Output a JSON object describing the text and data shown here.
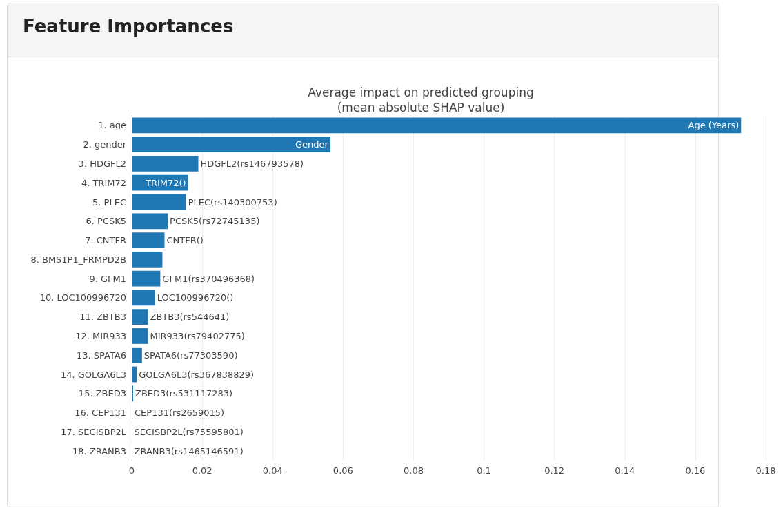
{
  "chart_data": {
    "type": "bar",
    "orientation": "horizontal",
    "title": "Feature Importances",
    "subtitle": "Average impact on predicted grouping\n(mean absolute SHAP value)",
    "categories": [
      "1. age",
      "2. gender",
      "3. HDGFL2",
      "4. TRIM72",
      "5. PLEC",
      "6. PCSK5",
      "7. CNTFR",
      "8. BMS1P1_FRMPD2B",
      "9. GFM1",
      "10. LOC100996720",
      "11. ZBTB3",
      "12. MIR933",
      "13. SPATA6",
      "14. GOLGA6L3",
      "15. ZBED3",
      "16. CEP131",
      "17. SECISBP2L",
      "18. ZRANB3"
    ],
    "values": [
      0.173,
      0.0564,
      0.0189,
      0.016,
      0.0154,
      0.0102,
      0.0093,
      0.0087,
      0.0081,
      0.0066,
      0.0046,
      0.0046,
      0.0029,
      0.0014,
      0.0004,
      0.0002,
      0.0001,
      0.0001
    ],
    "color": "#1f77b4",
    "xlim": [
      0,
      0.18
    ],
    "xticks": [
      0,
      0.02,
      0.04,
      0.06,
      0.08,
      0.1,
      0.12,
      0.14,
      0.16,
      0.18
    ],
    "grid": "x",
    "annotations": [
      {
        "text": "Age (Years)",
        "x": 0.173,
        "y": "1. age"
      },
      {
        "text": "Gender",
        "x": 0.0564,
        "y": "2. gender"
      },
      {
        "text": "HDGFL2(rs146793578)",
        "x": 0.0189,
        "y": "3. HDGFL2"
      },
      {
        "text": "TRIM72()",
        "x": 0.016,
        "y": "4. TRIM72"
      },
      {
        "text": "PLEC(rs140300753)",
        "x": 0.0154,
        "y": "5. PLEC"
      },
      {
        "text": "PCSK5(rs72745135)",
        "x": 0.0102,
        "y": "6. PCSK5"
      },
      {
        "text": "CNTFR()",
        "x": 0.0093,
        "y": "7. CNTFR"
      },
      {
        "text": "GFM1(rs370496368)",
        "x": 0.0081,
        "y": "9. GFM1"
      },
      {
        "text": "LOC100996720()",
        "x": 0.0066,
        "y": "10. LOC100996720"
      },
      {
        "text": "ZBTB3(rs544641)",
        "x": 0.0046,
        "y": "11. ZBTB3"
      },
      {
        "text": "MIR933(rs79402775)",
        "x": 0.0046,
        "y": "12. MIR933"
      },
      {
        "text": "SPATA6(rs77303590)",
        "x": 0.0029,
        "y": "13. SPATA6"
      },
      {
        "text": "GOLGA6L3(rs367838829)",
        "x": 0.0014,
        "y": "14. GOLGA6L3"
      },
      {
        "text": "ZBED3(rs531117283)",
        "x": 0.0004,
        "y": "15. ZBED3"
      },
      {
        "text": "CEP131(rs2659015)",
        "x": 0.0002,
        "y": "16. CEP131"
      },
      {
        "text": "SECISBP2L(rs75595801)",
        "x": 0.0001,
        "y": "17. SECISBP2L"
      },
      {
        "text": "ZRANB3(rs1465146591)",
        "x": 0.0001,
        "y": "18. ZRANB3"
      }
    ]
  }
}
